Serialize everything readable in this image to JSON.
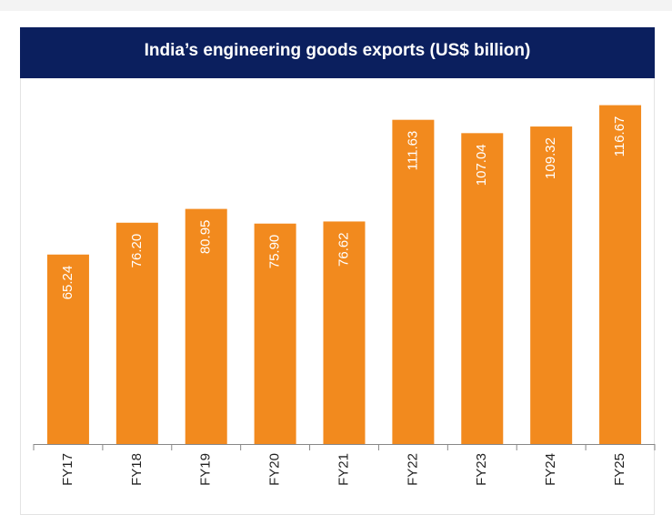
{
  "chart_data": {
    "type": "bar",
    "title": "India’s engineering goods exports (US$ billion)",
    "categories": [
      "FY17",
      "FY18",
      "FY19",
      "FY20",
      "FY21",
      "FY22",
      "FY23",
      "FY24",
      "FY25"
    ],
    "values": [
      65.24,
      76.2,
      80.95,
      75.9,
      76.62,
      111.63,
      107.04,
      109.32,
      116.67
    ],
    "value_labels": [
      "65.24",
      "76.20",
      "80.95",
      "75.90",
      "76.62",
      "111.63",
      "107.04",
      "109.32",
      "116.67"
    ],
    "color": "#f28a1e",
    "ylim": [
      0,
      125
    ]
  }
}
